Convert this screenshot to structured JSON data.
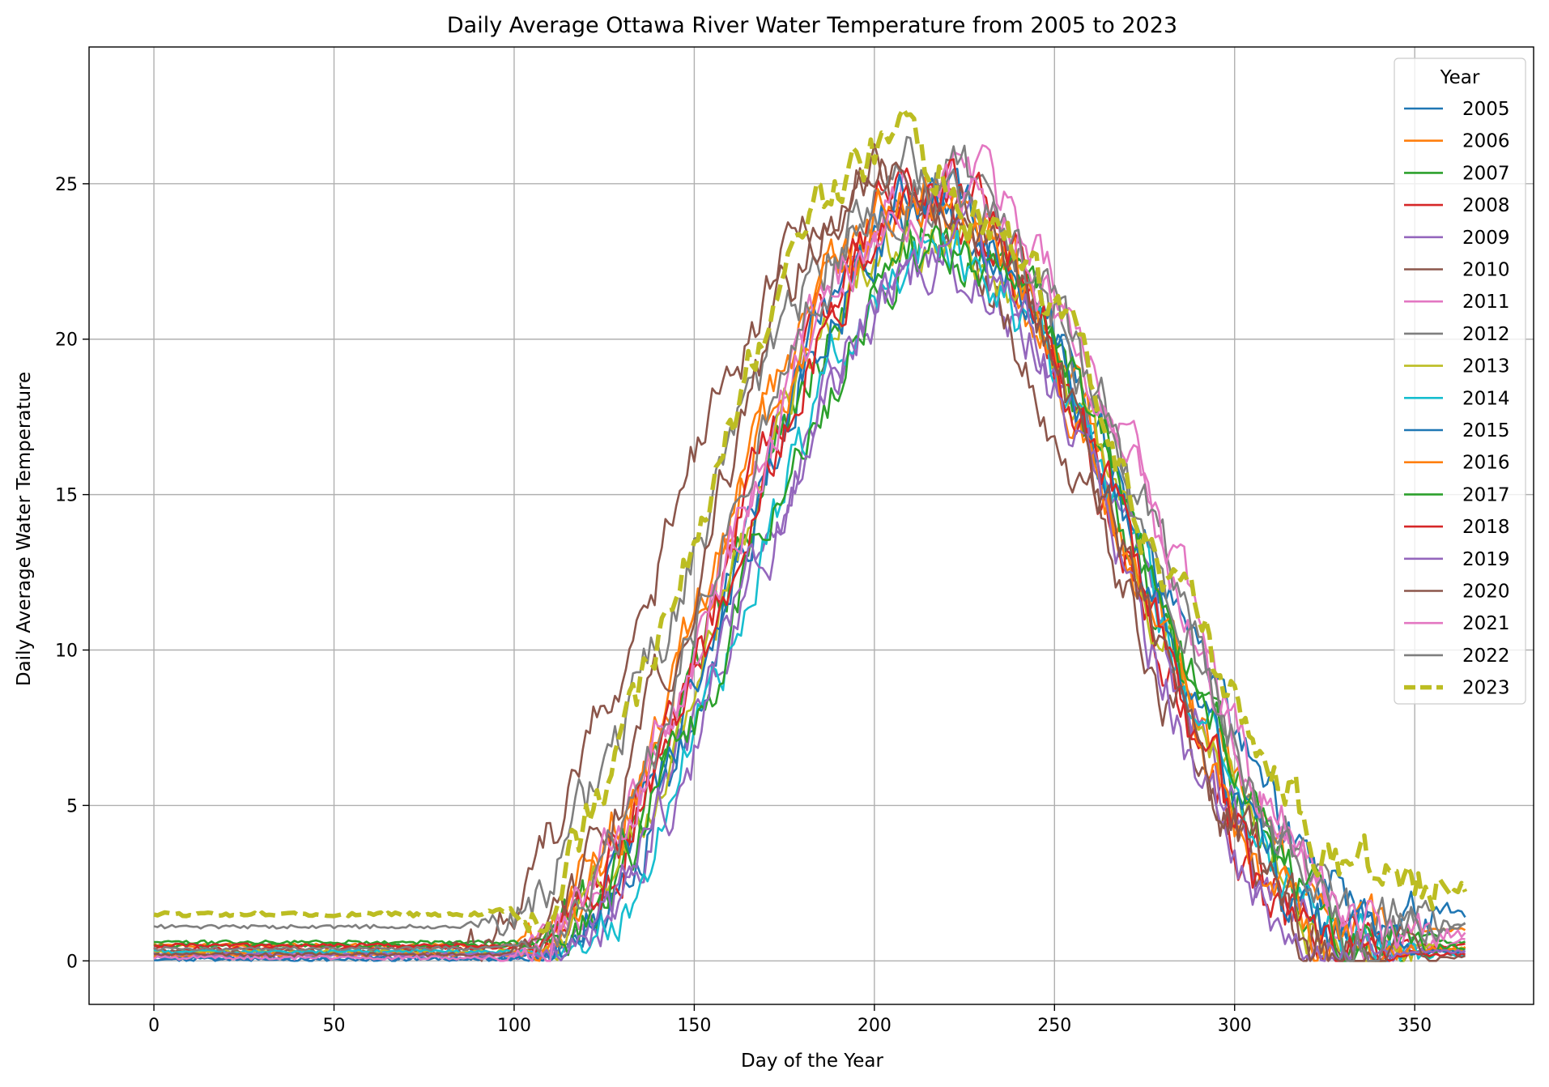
{
  "chart_data": {
    "type": "line",
    "title": "Daily Average Ottawa River Water Temperature from 2005 to 2023",
    "xlabel": "Day of the Year",
    "ylabel": "Daily Average Water Temperature",
    "xlim": [
      -18,
      383
    ],
    "ylim": [
      -1.4,
      29.4
    ],
    "xticks": [
      0,
      50,
      100,
      150,
      200,
      250,
      300,
      350
    ],
    "yticks": [
      0,
      5,
      10,
      15,
      20,
      25
    ],
    "grid": true,
    "legend": {
      "title": "Year",
      "placement": "top-right"
    },
    "series": [
      {
        "name": "2005",
        "color": "#1f77b4",
        "base": 0.05,
        "onset": 110,
        "peakDay": 210,
        "peak": 24.2,
        "fall": 345,
        "end": 1.5
      },
      {
        "name": "2006",
        "color": "#ff7f0e",
        "base": 0.5,
        "onset": 97,
        "peakDay": 212,
        "peak": 24.8,
        "fall": 335,
        "end": 1.0
      },
      {
        "name": "2007",
        "color": "#2ca02c",
        "base": 0.6,
        "onset": 103,
        "peakDay": 215,
        "peak": 23.4,
        "fall": 338,
        "end": 0.6
      },
      {
        "name": "2008",
        "color": "#d62728",
        "base": 0.4,
        "onset": 104,
        "peakDay": 214,
        "peak": 24.4,
        "fall": 330,
        "end": 0.5
      },
      {
        "name": "2009",
        "color": "#9467bd",
        "base": 0.2,
        "onset": 107,
        "peakDay": 218,
        "peak": 22.6,
        "fall": 336,
        "end": 0.3
      },
      {
        "name": "2010",
        "color": "#8c564b",
        "base": 0.3,
        "onset": 80,
        "peakDay": 200,
        "peak": 25.0,
        "fall": 335,
        "end": 0.2
      },
      {
        "name": "2011",
        "color": "#e377c2",
        "base": 0.2,
        "onset": 97,
        "peakDay": 218,
        "peak": 25.3,
        "fall": 342,
        "end": 0.7
      },
      {
        "name": "2012",
        "color": "#7f7f7f",
        "base": 1.1,
        "onset": 88,
        "peakDay": 213,
        "peak": 25.4,
        "fall": 344,
        "end": 1.2
      },
      {
        "name": "2013",
        "color": "#bcbd22",
        "base": 0.3,
        "onset": 105,
        "peakDay": 214,
        "peak": 23.6,
        "fall": 338,
        "end": 0.4
      },
      {
        "name": "2014",
        "color": "#17becf",
        "base": 0.3,
        "onset": 110,
        "peakDay": 218,
        "peak": 22.8,
        "fall": 338,
        "end": 0.2
      },
      {
        "name": "2015",
        "color": "#1f77b4",
        "base": 0.1,
        "onset": 104,
        "peakDay": 216,
        "peak": 24.4,
        "fall": 336,
        "end": 0.3
      },
      {
        "name": "2016",
        "color": "#ff7f0e",
        "base": 0.2,
        "onset": 100,
        "peakDay": 212,
        "peak": 24.7,
        "fall": 332,
        "end": 0.4
      },
      {
        "name": "2017",
        "color": "#2ca02c",
        "base": 0.5,
        "onset": 105,
        "peakDay": 222,
        "peak": 23.0,
        "fall": 340,
        "end": 0.4
      },
      {
        "name": "2018",
        "color": "#d62728",
        "base": 0.5,
        "onset": 105,
        "peakDay": 217,
        "peak": 24.8,
        "fall": 330,
        "end": 0.2
      },
      {
        "name": "2019",
        "color": "#9467bd",
        "base": 0.2,
        "onset": 108,
        "peakDay": 220,
        "peak": 22.8,
        "fall": 326,
        "end": 0.3
      },
      {
        "name": "2020",
        "color": "#8c564b",
        "base": 0.2,
        "onset": 98,
        "peakDay": 205,
        "peak": 25.6,
        "fall": 336,
        "end": 0.1
      },
      {
        "name": "2021",
        "color": "#e377c2",
        "base": 0.1,
        "onset": 96,
        "peakDay": 218,
        "peak": 24.6,
        "fall": 346,
        "end": 0.8
      },
      {
        "name": "2022",
        "color": "#7f7f7f",
        "base": 0.4,
        "onset": 100,
        "peakDay": 212,
        "peak": 25.2,
        "fall": 344,
        "end": 1.1
      },
      {
        "name": "2023",
        "color": "#bcbd22",
        "base": 1.5,
        "onset": 94,
        "peakDay": 205,
        "peak": 25.8,
        "fall": 348,
        "end": 2.3,
        "dashed": true
      }
    ]
  }
}
